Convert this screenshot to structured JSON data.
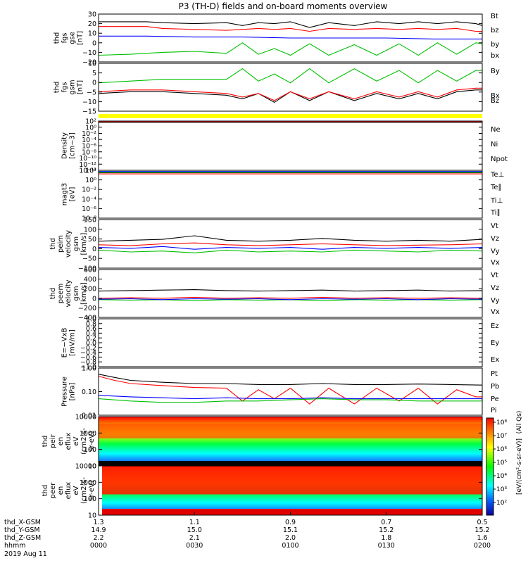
{
  "title": "P3 (TH-D) fields and on-board moments overview",
  "chart_data": [
    {
      "id": "fgs-gse",
      "type": "line",
      "ylabel": [
        "thd",
        "fgs",
        "gse",
        "[nT]"
      ],
      "yticks": [
        "30",
        "20",
        "10",
        "0",
        "−10",
        "−20"
      ],
      "ylim": [
        -20,
        30
      ],
      "series": [
        {
          "name": "Bt",
          "color": "#000000",
          "x": [
            0,
            15,
            20,
            30,
            40,
            45,
            50,
            55,
            60,
            66,
            72,
            80,
            87,
            94,
            100,
            106,
            112,
            118,
            120
          ],
          "y": [
            22,
            22,
            21,
            20,
            21,
            18,
            21,
            20,
            22,
            16,
            21,
            18,
            22,
            20,
            22,
            20,
            22,
            20,
            18
          ]
        },
        {
          "name": "bz",
          "color": "#ff0000",
          "x": [
            0,
            15,
            20,
            30,
            40,
            45,
            50,
            55,
            60,
            66,
            72,
            80,
            87,
            94,
            100,
            106,
            112,
            118,
            120
          ],
          "y": [
            17,
            17,
            15,
            14,
            13,
            14,
            15,
            14,
            15,
            12,
            15,
            14,
            15,
            14,
            15,
            14,
            15,
            12,
            12
          ]
        },
        {
          "name": "by",
          "color": "#00c000",
          "x": [
            0,
            10,
            20,
            30,
            40,
            45,
            50,
            55,
            60,
            66,
            72,
            80,
            87,
            94,
            100,
            106,
            112,
            118,
            120
          ],
          "y": [
            -13,
            -12,
            -10,
            -9,
            -11,
            0,
            -12,
            -6,
            -13,
            -1,
            -13,
            -2,
            -13,
            -1,
            -13,
            0,
            -12,
            0,
            -1
          ]
        },
        {
          "name": "bx",
          "color": "#0000ff",
          "x": [
            0,
            15,
            30,
            45,
            60,
            75,
            90,
            105,
            120
          ],
          "y": [
            7,
            7,
            6,
            6,
            5,
            5,
            5,
            4,
            4
          ]
        }
      ]
    },
    {
      "id": "fgs-gsm",
      "type": "line",
      "ylabel": [
        "thd",
        "fgs",
        "gsm",
        "[nT]"
      ],
      "yticks": [
        "10",
        "5",
        "0",
        "−5",
        "−10",
        "−15"
      ],
      "ylim": [
        -15,
        12
      ],
      "series": [
        {
          "name": "By",
          "color": "#00c000",
          "x": [
            0,
            10,
            20,
            30,
            40,
            45,
            50,
            55,
            60,
            66,
            72,
            80,
            87,
            94,
            100,
            106,
            112,
            118,
            120
          ],
          "y": [
            1,
            2,
            3,
            3,
            3,
            9,
            2,
            6,
            1,
            9,
            1,
            9,
            2,
            8,
            1,
            8,
            2,
            8,
            8
          ]
        },
        {
          "name": "Bx",
          "color": "#000000",
          "x": [
            0,
            10,
            20,
            30,
            40,
            45,
            50,
            55,
            60,
            66,
            72,
            80,
            87,
            94,
            100,
            106,
            112,
            118,
            120
          ],
          "y": [
            -5,
            -4,
            -4,
            -5,
            -6,
            -8,
            -5,
            -10,
            -4,
            -9,
            -4,
            -9,
            -5,
            -8,
            -5,
            -8,
            -4,
            -3,
            -3
          ]
        },
        {
          "name": "Bz",
          "color": "#ff0000",
          "x": [
            0,
            10,
            20,
            30,
            40,
            45,
            50,
            55,
            60,
            66,
            72,
            80,
            87,
            94,
            100,
            106,
            112,
            118,
            120
          ],
          "y": [
            -4,
            -3,
            -3,
            -4,
            -5,
            -7,
            -5,
            -9,
            -4,
            -8,
            -4,
            -8,
            -4,
            -7,
            -4,
            -7,
            -3,
            -2,
            -2
          ]
        }
      ]
    },
    {
      "id": "density",
      "type": "line",
      "scale": "log",
      "ylabel": [
        "Density",
        "[cm−3]"
      ],
      "yticks": [
        "10²",
        "10⁰",
        "10⁻²",
        "10⁻⁴",
        "10⁻⁶",
        "10⁻⁸",
        "10⁻¹⁰",
        "10⁻¹²",
        "10⁻¹⁴"
      ],
      "ylim": [
        -14,
        2
      ],
      "series": [
        {
          "name": "Ne",
          "color": "#ff0000",
          "x": [
            0,
            120
          ],
          "y": [
            1.8,
            1.8
          ]
        },
        {
          "name": "Ni",
          "color": "#000000",
          "x": [
            0,
            120
          ],
          "y": [
            1.6,
            1.6
          ]
        },
        {
          "name": "Npot",
          "color": "#0000ff",
          "x": [
            0,
            120
          ],
          "y": [
            2,
            2
          ]
        }
      ]
    },
    {
      "id": "temperature",
      "type": "line",
      "scale": "log",
      "ylabel": [
        "magt3",
        "[eV]"
      ],
      "yticks": [
        "10²",
        "10⁰",
        "10⁻²",
        "10⁻⁴",
        "10⁻⁶",
        "10⁻⁸"
      ],
      "ylim": [
        -9,
        3
      ],
      "series": [
        {
          "name": "Te⊥",
          "color": "#ff0000",
          "x": [
            0,
            120
          ],
          "y": [
            2.1,
            2.1
          ]
        },
        {
          "name": "Te∥",
          "color": "#000000",
          "x": [
            0,
            120
          ],
          "y": [
            2.4,
            2.4
          ]
        },
        {
          "name": "Ti⊥",
          "color": "#0000ff",
          "x": [
            0,
            120
          ],
          "y": [
            2.7,
            2.7
          ]
        },
        {
          "name": "Ti∥",
          "color": "#00c000",
          "x": [
            0,
            120
          ],
          "y": [
            2.5,
            2.5
          ]
        }
      ]
    },
    {
      "id": "peim-velocity",
      "type": "line",
      "ylabel": [
        "thd",
        "peim",
        "velocity",
        "gsm",
        "[km/s]"
      ],
      "yticks": [
        "150",
        "100",
        "50",
        "0",
        "−50",
        "−100"
      ],
      "ylim": [
        -110,
        160
      ],
      "series": [
        {
          "name": "Vt",
          "color": "#000000",
          "x": [
            0,
            10,
            20,
            30,
            40,
            50,
            60,
            70,
            80,
            90,
            100,
            110,
            120
          ],
          "y": [
            40,
            45,
            50,
            70,
            45,
            40,
            45,
            55,
            45,
            40,
            45,
            40,
            50
          ]
        },
        {
          "name": "Vz",
          "color": "#ff0000",
          "x": [
            0,
            10,
            20,
            30,
            40,
            50,
            60,
            70,
            80,
            90,
            100,
            110,
            120
          ],
          "y": [
            20,
            15,
            25,
            30,
            20,
            15,
            20,
            25,
            20,
            15,
            18,
            20,
            25
          ]
        },
        {
          "name": "Vy",
          "color": "#00c000",
          "x": [
            0,
            10,
            20,
            30,
            40,
            50,
            60,
            70,
            80,
            90,
            100,
            110,
            120
          ],
          "y": [
            -10,
            -20,
            -15,
            -25,
            -10,
            -20,
            -15,
            -20,
            -10,
            -15,
            -20,
            -10,
            -15
          ]
        },
        {
          "name": "Vx",
          "color": "#0000ff",
          "x": [
            0,
            10,
            20,
            30,
            40,
            50,
            60,
            70,
            80,
            90,
            100,
            110,
            120
          ],
          "y": [
            5,
            0,
            10,
            -5,
            5,
            0,
            5,
            -5,
            5,
            0,
            5,
            0,
            5
          ]
        }
      ]
    },
    {
      "id": "peem-velocity",
      "type": "line",
      "ylabel": [
        "thd",
        "peem",
        "velocity",
        "gsm",
        "[km/s]"
      ],
      "yticks": [
        "600",
        "400",
        "200",
        "0",
        "−200",
        "−400"
      ],
      "ylim": [
        -400,
        600
      ],
      "series": [
        {
          "name": "Vt",
          "color": "#000000",
          "x": [
            0,
            10,
            20,
            30,
            40,
            50,
            60,
            70,
            80,
            90,
            100,
            110,
            120
          ],
          "y": [
            150,
            160,
            170,
            180,
            160,
            150,
            160,
            170,
            150,
            160,
            170,
            150,
            160
          ]
        },
        {
          "name": "Vz",
          "color": "#ff0000",
          "x": [
            0,
            10,
            20,
            30,
            40,
            50,
            60,
            70,
            80,
            90,
            100,
            110,
            120
          ],
          "y": [
            0,
            10,
            0,
            20,
            0,
            10,
            0,
            20,
            0,
            10,
            0,
            10,
            0
          ]
        },
        {
          "name": "Vy",
          "color": "#00c000",
          "x": [
            0,
            10,
            20,
            30,
            40,
            50,
            60,
            70,
            80,
            90,
            100,
            110,
            120
          ],
          "y": [
            -30,
            -40,
            -30,
            -50,
            -30,
            -40,
            -30,
            -50,
            -30,
            -40,
            -30,
            -40,
            -30
          ]
        },
        {
          "name": "Vx",
          "color": "#0000ff",
          "x": [
            0,
            10,
            20,
            30,
            40,
            50,
            60,
            70,
            80,
            90,
            100,
            110,
            120
          ],
          "y": [
            -20,
            -10,
            -30,
            -10,
            -20,
            -10,
            -30,
            -10,
            -20,
            -10,
            -30,
            -10,
            -20
          ]
        }
      ]
    },
    {
      "id": "efield",
      "type": "line",
      "ylabel": [
        "E=−VxB",
        "[mV/m]"
      ],
      "yticks": [
        "1.0",
        "0.8",
        "0.6",
        "0.4",
        "0.2",
        "0.0",
        "−0.2",
        "−0.4",
        "−0.6",
        "−0.8",
        "−1.0"
      ],
      "ylim": [
        -1,
        1
      ],
      "series": [
        {
          "name": "Ez",
          "color": "#ff0000",
          "x": [],
          "y": []
        },
        {
          "name": "Ey",
          "color": "#00c000",
          "x": [],
          "y": []
        },
        {
          "name": "Ex",
          "color": "#0000ff",
          "x": [],
          "y": []
        }
      ]
    },
    {
      "id": "pressure",
      "type": "line",
      "scale": "log",
      "ylabel": [
        "Pressure",
        "[nPa]"
      ],
      "yticks": [
        "1.00",
        "0.10",
        "0.01"
      ],
      "ylim": [
        0.01,
        1
      ],
      "series": [
        {
          "name": "Pt",
          "color": "#000000",
          "x": [
            0,
            5,
            10,
            20,
            30,
            40,
            50,
            60,
            70,
            80,
            90,
            100,
            110,
            120
          ],
          "y": [
            0.55,
            0.4,
            0.3,
            0.25,
            0.22,
            0.22,
            0.2,
            0.2,
            0.22,
            0.2,
            0.2,
            0.21,
            0.2,
            0.19
          ]
        },
        {
          "name": "Pb",
          "color": "#ff0000",
          "x": [
            0,
            5,
            10,
            20,
            30,
            40,
            45,
            50,
            55,
            60,
            66,
            72,
            80,
            87,
            94,
            100,
            106,
            112,
            118,
            120
          ],
          "y": [
            0.45,
            0.3,
            0.22,
            0.18,
            0.15,
            0.14,
            0.04,
            0.12,
            0.05,
            0.14,
            0.03,
            0.14,
            0.03,
            0.14,
            0.04,
            0.14,
            0.03,
            0.12,
            0.06,
            0.06
          ]
        },
        {
          "name": "Pe",
          "color": "#0000ff",
          "x": [
            0,
            10,
            20,
            30,
            40,
            50,
            60,
            70,
            80,
            90,
            100,
            110,
            120
          ],
          "y": [
            0.07,
            0.06,
            0.055,
            0.05,
            0.055,
            0.05,
            0.05,
            0.055,
            0.05,
            0.05,
            0.05,
            0.05,
            0.05
          ]
        },
        {
          "name": "Pi",
          "color": "#00c000",
          "x": [
            0,
            10,
            20,
            30,
            40,
            50,
            60,
            70,
            80,
            90,
            100,
            110,
            120
          ],
          "y": [
            0.05,
            0.04,
            0.035,
            0.035,
            0.04,
            0.04,
            0.045,
            0.05,
            0.045,
            0.045,
            0.04,
            0.04,
            0.04
          ]
        }
      ]
    },
    {
      "id": "peir-spectrogram",
      "type": "heatmap",
      "ylabel": [
        "thd",
        "peir",
        "en",
        "eflux",
        "eV",
        "(cm2-s-",
        "sr-eV)"
      ],
      "yticks": [
        "10000",
        "1000",
        "100",
        "10"
      ],
      "ylim": [
        5,
        25000
      ]
    },
    {
      "id": "peer-spectrogram",
      "type": "heatmap",
      "ylabel": [
        "thd",
        "peer",
        "en",
        "eflux",
        "eV",
        "(cm2-s-",
        "sr-eV)"
      ],
      "yticks": [
        "10000",
        "1000",
        "100",
        "10"
      ],
      "ylim": [
        5,
        25000
      ]
    }
  ],
  "colorbar": {
    "label": "[eV/(cm²-s-sr-eV)]",
    "ions_label": "(All Qs)",
    "ticks": [
      "10⁸",
      "10⁷",
      "10⁶",
      "10⁵",
      "10⁴",
      "10³",
      "10²"
    ]
  },
  "xaxis": {
    "row_labels": [
      "thd_X-GSM",
      "thd_Y-GSM",
      "thd_Z-GSM",
      "hhmm",
      "2019 Aug 11"
    ],
    "columns": [
      {
        "x": "1.3",
        "y": "14.9",
        "z": "2.2",
        "t": "0000"
      },
      {
        "x": "1.1",
        "y": "15.0",
        "z": "2.1",
        "t": "0030"
      },
      {
        "x": "0.9",
        "y": "15.1",
        "z": "2.0",
        "t": "0100"
      },
      {
        "x": "0.7",
        "y": "15.2",
        "z": "1.8",
        "t": "0130"
      },
      {
        "x": "0.5",
        "y": "15.2",
        "z": "1.6",
        "t": "0200"
      }
    ]
  }
}
